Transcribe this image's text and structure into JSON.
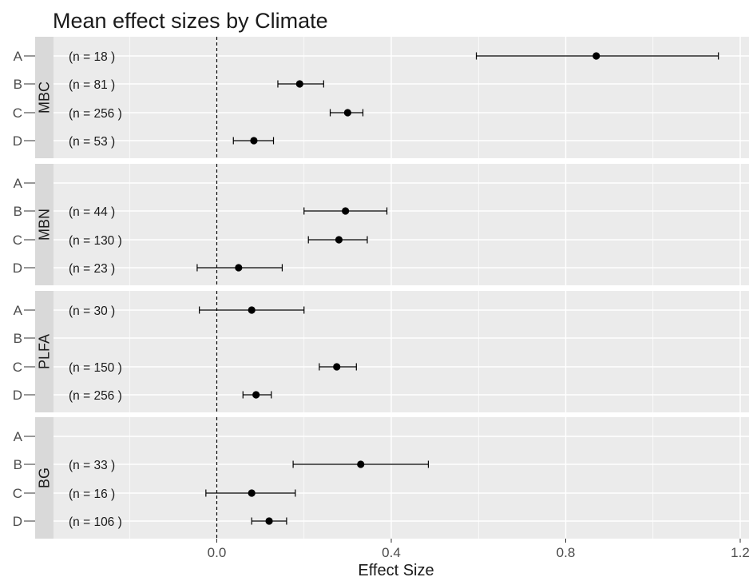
{
  "chart_data": {
    "type": "scatter",
    "subtype": "forest-plot-faceted",
    "title": "Mean effect sizes by Climate",
    "xlabel": "Effect Size",
    "ylabel": "",
    "xlim": [
      -0.42,
      1.22
    ],
    "xticks": [
      0.0,
      0.4,
      0.8,
      1.2
    ],
    "xtick_labels": [
      "0.0",
      "0.4",
      "0.8",
      "1.2"
    ],
    "categories": [
      "A",
      "B",
      "C",
      "D"
    ],
    "reference_line": 0.0,
    "grid": true,
    "panels": [
      {
        "name": "MBC",
        "points": [
          {
            "category": "A",
            "mean": 0.87,
            "lower": 0.595,
            "upper": 1.15,
            "n_label": "(n =  18 )"
          },
          {
            "category": "B",
            "mean": 0.19,
            "lower": 0.14,
            "upper": 0.245,
            "n_label": "(n =  81 )"
          },
          {
            "category": "C",
            "mean": 0.3,
            "lower": 0.26,
            "upper": 0.335,
            "n_label": "(n =  256 )"
          },
          {
            "category": "D",
            "mean": 0.085,
            "lower": 0.038,
            "upper": 0.13,
            "n_label": "(n =  53 )"
          }
        ]
      },
      {
        "name": "MBN",
        "points": [
          {
            "category": "B",
            "mean": 0.295,
            "lower": 0.2,
            "upper": 0.39,
            "n_label": "(n =  44 )"
          },
          {
            "category": "C",
            "mean": 0.28,
            "lower": 0.21,
            "upper": 0.345,
            "n_label": "(n =  130 )"
          },
          {
            "category": "D",
            "mean": 0.05,
            "lower": -0.045,
            "upper": 0.15,
            "n_label": "(n =  23 )"
          }
        ]
      },
      {
        "name": "PLFA",
        "points": [
          {
            "category": "A",
            "mean": 0.08,
            "lower": -0.04,
            "upper": 0.2,
            "n_label": "(n =  30 )"
          },
          {
            "category": "C",
            "mean": 0.275,
            "lower": 0.235,
            "upper": 0.32,
            "n_label": "(n =  150 )"
          },
          {
            "category": "D",
            "mean": 0.09,
            "lower": 0.06,
            "upper": 0.125,
            "n_label": "(n =  256 )"
          }
        ]
      },
      {
        "name": "BG",
        "points": [
          {
            "category": "B",
            "mean": 0.33,
            "lower": 0.175,
            "upper": 0.485,
            "n_label": "(n =  33 )"
          },
          {
            "category": "C",
            "mean": 0.08,
            "lower": -0.025,
            "upper": 0.18,
            "n_label": "(n =  16 )"
          },
          {
            "category": "D",
            "mean": 0.12,
            "lower": 0.08,
            "upper": 0.16,
            "n_label": "(n =  106 )"
          }
        ]
      }
    ]
  },
  "colors": {
    "panel_background": "#ebebeb",
    "strip_background": "#d9d9d9",
    "grid_line": "#ffffff",
    "point": "#000000",
    "errorbar": "#000000",
    "reference_line": "#000000"
  }
}
